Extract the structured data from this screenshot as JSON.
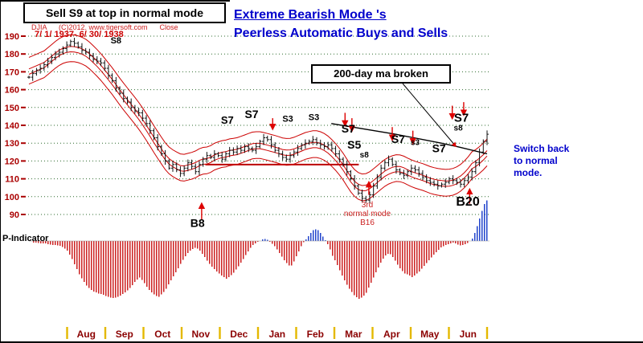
{
  "header": {
    "note_box": "Sell S9 at top in normal mode",
    "source_line": "DJIA      (C)2012. www.tigersoft.com      Close",
    "date_range": "7/ 1/ 1937- 6/ 30/ 1938",
    "title_line1": "Extreme Bearish Mode 's",
    "title_line2": "Peerless Automatic Buys and Sells",
    "title_color": "#0000cc"
  },
  "annotations": {
    "ma_broken_box": "200-day ma broken",
    "switch_note": "Switch back\nto normal\nmode.",
    "third_mode_note": "3rd\nnormal mode\nB16",
    "p_indicator_label": "P-Indicator"
  },
  "chart_data": {
    "type": "candlestick",
    "title": "Extreme Bearish Mode 's Peerless Automatic Buys and Sells",
    "symbol": "DJIA",
    "date_range": "7/1/1937 - 6/30/1938",
    "ylim": [
      83,
      195
    ],
    "y_ticks": [
      190,
      180,
      170,
      160,
      150,
      140,
      130,
      120,
      110,
      100,
      90
    ],
    "y_tick_color": "#aa0000",
    "grid": "dotted-green",
    "months": [
      "Aug",
      "Sep",
      "Oct",
      "Nov",
      "Dec",
      "Jan",
      "Feb",
      "Mar",
      "Apr",
      "May",
      "Jun"
    ],
    "month_color": "#8b0000",
    "close": [
      167,
      169,
      171,
      172,
      174,
      176,
      178,
      180,
      181,
      183,
      185,
      187,
      186,
      184,
      182,
      181,
      179,
      177,
      176,
      175,
      172,
      168,
      165,
      161,
      158,
      155,
      153,
      150,
      148,
      147,
      144,
      141,
      137,
      133,
      128,
      124,
      120,
      116,
      118,
      115,
      113,
      116,
      119,
      117,
      114,
      118,
      121,
      123,
      122,
      124,
      123,
      121,
      124,
      126,
      125,
      127,
      126,
      128,
      127,
      126,
      128,
      131,
      133,
      132,
      129,
      126,
      124,
      122,
      121,
      123,
      125,
      127,
      129,
      130,
      131,
      132,
      130,
      129,
      128,
      129,
      127,
      124,
      121,
      118,
      114,
      110,
      106,
      102,
      99,
      98,
      101,
      106,
      111,
      116,
      119,
      121,
      118,
      115,
      113,
      112,
      114,
      116,
      115,
      113,
      111,
      109,
      108,
      107,
      106,
      107,
      108,
      110,
      109,
      108,
      107,
      109,
      111,
      114,
      119,
      125,
      131,
      135
    ],
    "band_offset": 7.5,
    "band_color": "#cc0000",
    "ma200": [
      [
        0.66,
        141
      ],
      [
        0.8,
        135
      ],
      [
        0.9,
        130
      ],
      [
        0.935,
        128
      ],
      [
        1.0,
        124
      ]
    ],
    "support_line": {
      "x1": 0.385,
      "x2": 0.72,
      "price": 118
    },
    "pointer_line": [
      500,
      104,
      566,
      182
    ],
    "signals": [
      {
        "text": "S8",
        "f": 0.19,
        "price": 186,
        "size": 11
      },
      {
        "text": "S7",
        "f": 0.433,
        "price": 141,
        "size": 13
      },
      {
        "text": "S7",
        "f": 0.486,
        "price": 144,
        "size": 14
      },
      {
        "text": "S3",
        "f": 0.565,
        "price": 142,
        "size": 11
      },
      {
        "text": "S3",
        "f": 0.622,
        "price": 143,
        "size": 11
      },
      {
        "text": "S7",
        "f": 0.697,
        "price": 136,
        "size": 14
      },
      {
        "text": "S5",
        "f": 0.71,
        "price": 127,
        "size": 14
      },
      {
        "text": "s8",
        "f": 0.732,
        "price": 122,
        "size": 10
      },
      {
        "text": "S7",
        "f": 0.806,
        "price": 130,
        "size": 14
      },
      {
        "text": "s3",
        "f": 0.843,
        "price": 129,
        "size": 10
      },
      {
        "text": "S7",
        "f": 0.895,
        "price": 125,
        "size": 14
      },
      {
        "text": "s8",
        "f": 0.937,
        "price": 137,
        "size": 10
      },
      {
        "text": "S7",
        "f": 0.944,
        "price": 142,
        "size": 15
      },
      {
        "text": "B8",
        "f": 0.368,
        "price": 83,
        "size": 14
      },
      {
        "text": "B20",
        "f": 0.958,
        "price": 95,
        "size": 16
      }
    ],
    "arrows_down": [
      [
        0.532,
        144,
        138
      ],
      [
        0.69,
        147,
        140
      ],
      [
        0.705,
        144,
        137
      ],
      [
        0.793,
        139,
        132
      ],
      [
        0.838,
        137,
        130
      ],
      [
        0.924,
        151,
        144
      ],
      [
        0.949,
        153,
        146
      ]
    ],
    "arrows_up": [
      [
        0.377,
        87,
        96
      ],
      [
        0.742,
        101,
        108
      ],
      [
        0.962,
        96,
        104
      ]
    ],
    "indicator": {
      "name": "P-Indicator",
      "neg_color": "#cc2222",
      "pos_color": "#2244cc",
      "values": [
        -1,
        -2,
        -2,
        -3,
        -3,
        -4,
        -5,
        -5,
        -6,
        -8,
        -12,
        -20,
        -30,
        -40,
        -48,
        -55,
        -60,
        -63,
        -65,
        -66,
        -68,
        -70,
        -71,
        -70,
        -68,
        -65,
        -61,
        -56,
        -50,
        -45,
        -50,
        -57,
        -63,
        -67,
        -70,
        -66,
        -60,
        -52,
        -44,
        -36,
        -28,
        -20,
        -14,
        -10,
        -8,
        -12,
        -18,
        -25,
        -31,
        -36,
        -40,
        -44,
        -47,
        -44,
        -39,
        -33,
        -26,
        -18,
        -11,
        -5,
        -2,
        1,
        3,
        1,
        -3,
        -8,
        -15,
        -22,
        -28,
        -32,
        -24,
        -14,
        -4,
        2,
        8,
        14,
        15,
        9,
        2,
        -6,
        -18,
        -27,
        -37,
        -47,
        -56,
        -63,
        -69,
        -72,
        -70,
        -64,
        -54,
        -44,
        -34,
        -25,
        -18,
        -15,
        -20,
        -28,
        -35,
        -40,
        -42,
        -45,
        -42,
        -38,
        -32,
        -27,
        -21,
        -16,
        -11,
        -7,
        -5,
        -3,
        -2,
        -4,
        -6,
        -4,
        -2,
        3,
        15,
        30,
        45,
        52
      ]
    }
  }
}
